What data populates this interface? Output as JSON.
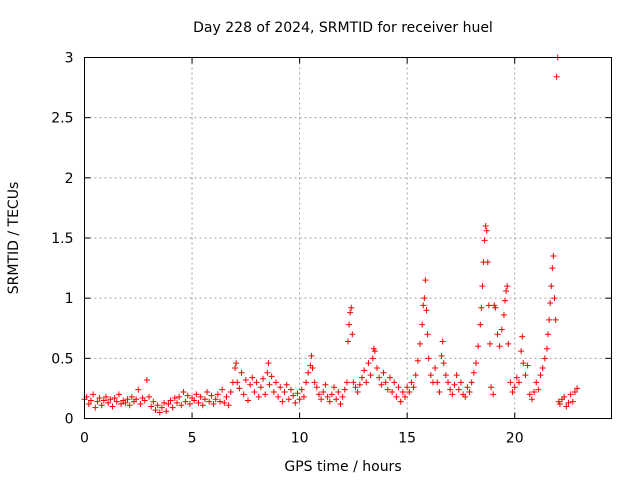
{
  "chart_data": {
    "type": "scatter",
    "title": "Day 228 of 2024, SRMTID for receiver huel",
    "xlabel": "GPS time / hours",
    "ylabel": "SRMTID / TECUs",
    "xlim": [
      0,
      24.5
    ],
    "ylim": [
      0,
      3
    ],
    "xticks": [
      0,
      5,
      10,
      15,
      20
    ],
    "xtick_labels": [
      "0",
      "5",
      "10",
      "15",
      "20"
    ],
    "yticks": [
      0,
      0.5,
      1,
      1.5,
      2,
      2.5,
      3
    ],
    "ytick_labels": [
      "0",
      "0.5",
      "1",
      "1.5",
      "2",
      "2.5",
      "3"
    ],
    "grid": true,
    "marker": "+",
    "color": "#ff0000",
    "series": [
      {
        "name": "SRMTID",
        "points": [
          [
            0.0,
            0.16
          ],
          [
            0.1,
            0.18
          ],
          [
            0.2,
            0.12
          ],
          [
            0.3,
            0.15
          ],
          [
            0.4,
            0.2
          ],
          [
            0.5,
            0.09
          ],
          [
            0.6,
            0.14
          ],
          [
            0.7,
            0.17
          ],
          [
            0.8,
            0.11
          ],
          [
            0.9,
            0.15
          ],
          [
            1.0,
            0.18
          ],
          [
            1.1,
            0.13
          ],
          [
            1.2,
            0.16
          ],
          [
            1.3,
            0.1
          ],
          [
            1.4,
            0.17
          ],
          [
            1.5,
            0.14
          ],
          [
            1.6,
            0.2
          ],
          [
            1.7,
            0.12
          ],
          [
            1.8,
            0.15
          ],
          [
            1.9,
            0.13
          ],
          [
            2.0,
            0.16
          ],
          [
            2.1,
            0.11
          ],
          [
            2.2,
            0.18
          ],
          [
            2.3,
            0.14
          ],
          [
            2.4,
            0.16
          ],
          [
            2.5,
            0.24
          ],
          [
            2.6,
            0.12
          ],
          [
            2.7,
            0.17
          ],
          [
            2.8,
            0.15
          ],
          [
            2.9,
            0.32
          ],
          [
            3.0,
            0.18
          ],
          [
            3.1,
            0.1
          ],
          [
            3.2,
            0.14
          ],
          [
            3.3,
            0.07
          ],
          [
            3.4,
            0.11
          ],
          [
            3.5,
            0.05
          ],
          [
            3.6,
            0.09
          ],
          [
            3.7,
            0.13
          ],
          [
            3.8,
            0.06
          ],
          [
            3.9,
            0.12
          ],
          [
            4.0,
            0.15
          ],
          [
            4.1,
            0.09
          ],
          [
            4.2,
            0.17
          ],
          [
            4.3,
            0.13
          ],
          [
            4.4,
            0.18
          ],
          [
            4.5,
            0.11
          ],
          [
            4.6,
            0.22
          ],
          [
            4.7,
            0.14
          ],
          [
            4.8,
            0.19
          ],
          [
            4.9,
            0.12
          ],
          [
            5.0,
            0.17
          ],
          [
            5.1,
            0.15
          ],
          [
            5.2,
            0.2
          ],
          [
            5.3,
            0.13
          ],
          [
            5.4,
            0.18
          ],
          [
            5.5,
            0.11
          ],
          [
            5.6,
            0.16
          ],
          [
            5.7,
            0.22
          ],
          [
            5.8,
            0.14
          ],
          [
            5.9,
            0.19
          ],
          [
            6.0,
            0.12
          ],
          [
            6.1,
            0.16
          ],
          [
            6.2,
            0.2
          ],
          [
            6.3,
            0.14
          ],
          [
            6.4,
            0.24
          ],
          [
            6.5,
            0.13
          ],
          [
            6.6,
            0.18
          ],
          [
            6.7,
            0.11
          ],
          [
            6.8,
            0.22
          ],
          [
            6.9,
            0.3
          ],
          [
            7.0,
            0.42
          ],
          [
            7.05,
            0.46
          ],
          [
            7.1,
            0.3
          ],
          [
            7.2,
            0.25
          ],
          [
            7.3,
            0.38
          ],
          [
            7.4,
            0.2
          ],
          [
            7.5,
            0.32
          ],
          [
            7.6,
            0.15
          ],
          [
            7.7,
            0.28
          ],
          [
            7.8,
            0.34
          ],
          [
            7.9,
            0.22
          ],
          [
            8.0,
            0.3
          ],
          [
            8.1,
            0.18
          ],
          [
            8.2,
            0.26
          ],
          [
            8.3,
            0.33
          ],
          [
            8.4,
            0.2
          ],
          [
            8.5,
            0.38
          ],
          [
            8.55,
            0.46
          ],
          [
            8.6,
            0.28
          ],
          [
            8.7,
            0.35
          ],
          [
            8.8,
            0.22
          ],
          [
            8.9,
            0.3
          ],
          [
            9.0,
            0.18
          ],
          [
            9.1,
            0.26
          ],
          [
            9.2,
            0.14
          ],
          [
            9.3,
            0.22
          ],
          [
            9.4,
            0.28
          ],
          [
            9.5,
            0.16
          ],
          [
            9.6,
            0.24
          ],
          [
            9.7,
            0.19
          ],
          [
            9.8,
            0.13
          ],
          [
            9.9,
            0.21
          ],
          [
            10.0,
            0.16
          ],
          [
            10.1,
            0.24
          ],
          [
            10.2,
            0.18
          ],
          [
            10.3,
            0.3
          ],
          [
            10.4,
            0.38
          ],
          [
            10.5,
            0.44
          ],
          [
            10.55,
            0.52
          ],
          [
            10.6,
            0.42
          ],
          [
            10.7,
            0.3
          ],
          [
            10.8,
            0.26
          ],
          [
            10.9,
            0.2
          ],
          [
            11.0,
            0.16
          ],
          [
            11.1,
            0.22
          ],
          [
            11.2,
            0.28
          ],
          [
            11.3,
            0.18
          ],
          [
            11.4,
            0.14
          ],
          [
            11.5,
            0.2
          ],
          [
            11.6,
            0.26
          ],
          [
            11.7,
            0.16
          ],
          [
            11.8,
            0.22
          ],
          [
            11.9,
            0.12
          ],
          [
            12.0,
            0.18
          ],
          [
            12.1,
            0.24
          ],
          [
            12.2,
            0.3
          ],
          [
            12.25,
            0.64
          ],
          [
            12.3,
            0.78
          ],
          [
            12.35,
            0.88
          ],
          [
            12.4,
            0.92
          ],
          [
            12.45,
            0.7
          ],
          [
            12.5,
            0.3
          ],
          [
            12.6,
            0.26
          ],
          [
            12.7,
            0.22
          ],
          [
            12.8,
            0.28
          ],
          [
            12.9,
            0.34
          ],
          [
            13.0,
            0.4
          ],
          [
            13.1,
            0.3
          ],
          [
            13.2,
            0.46
          ],
          [
            13.3,
            0.36
          ],
          [
            13.4,
            0.5
          ],
          [
            13.45,
            0.58
          ],
          [
            13.5,
            0.56
          ],
          [
            13.6,
            0.42
          ],
          [
            13.7,
            0.34
          ],
          [
            13.8,
            0.28
          ],
          [
            13.9,
            0.38
          ],
          [
            14.0,
            0.3
          ],
          [
            14.1,
            0.24
          ],
          [
            14.2,
            0.34
          ],
          [
            14.3,
            0.22
          ],
          [
            14.4,
            0.3
          ],
          [
            14.5,
            0.18
          ],
          [
            14.6,
            0.26
          ],
          [
            14.7,
            0.14
          ],
          [
            14.8,
            0.22
          ],
          [
            14.9,
            0.18
          ],
          [
            15.0,
            0.26
          ],
          [
            15.1,
            0.22
          ],
          [
            15.2,
            0.3
          ],
          [
            15.3,
            0.26
          ],
          [
            15.4,
            0.36
          ],
          [
            15.5,
            0.48
          ],
          [
            15.6,
            0.62
          ],
          [
            15.7,
            0.78
          ],
          [
            15.75,
            0.94
          ],
          [
            15.8,
            1.0
          ],
          [
            15.85,
            1.15
          ],
          [
            15.9,
            0.9
          ],
          [
            15.95,
            0.7
          ],
          [
            16.0,
            0.5
          ],
          [
            16.1,
            0.36
          ],
          [
            16.2,
            0.3
          ],
          [
            16.3,
            0.42
          ],
          [
            16.4,
            0.3
          ],
          [
            16.5,
            0.22
          ],
          [
            16.6,
            0.52
          ],
          [
            16.65,
            0.64
          ],
          [
            16.7,
            0.46
          ],
          [
            16.8,
            0.36
          ],
          [
            16.9,
            0.3
          ],
          [
            17.0,
            0.24
          ],
          [
            17.1,
            0.2
          ],
          [
            17.2,
            0.28
          ],
          [
            17.3,
            0.36
          ],
          [
            17.4,
            0.24
          ],
          [
            17.5,
            0.3
          ],
          [
            17.6,
            0.2
          ],
          [
            17.7,
            0.18
          ],
          [
            17.8,
            0.26
          ],
          [
            17.9,
            0.22
          ],
          [
            18.0,
            0.3
          ],
          [
            18.1,
            0.38
          ],
          [
            18.2,
            0.46
          ],
          [
            18.3,
            0.6
          ],
          [
            18.4,
            0.78
          ],
          [
            18.45,
            0.92
          ],
          [
            18.5,
            1.1
          ],
          [
            18.55,
            1.3
          ],
          [
            18.6,
            1.48
          ],
          [
            18.65,
            1.6
          ],
          [
            18.7,
            1.56
          ],
          [
            18.75,
            1.3
          ],
          [
            18.8,
            0.94
          ],
          [
            18.85,
            0.62
          ],
          [
            18.9,
            0.26
          ],
          [
            19.0,
            0.2
          ],
          [
            19.05,
            0.94
          ],
          [
            19.1,
            0.92
          ],
          [
            19.2,
            0.7
          ],
          [
            19.3,
            0.6
          ],
          [
            19.4,
            0.74
          ],
          [
            19.5,
            0.86
          ],
          [
            19.55,
            0.98
          ],
          [
            19.6,
            1.06
          ],
          [
            19.65,
            1.1
          ],
          [
            19.7,
            0.62
          ],
          [
            19.8,
            0.3
          ],
          [
            19.9,
            0.22
          ],
          [
            20.0,
            0.26
          ],
          [
            20.1,
            0.34
          ],
          [
            20.2,
            0.3
          ],
          [
            20.3,
            0.56
          ],
          [
            20.35,
            0.68
          ],
          [
            20.4,
            0.46
          ],
          [
            20.5,
            0.36
          ],
          [
            20.6,
            0.44
          ],
          [
            20.7,
            0.2
          ],
          [
            20.8,
            0.16
          ],
          [
            20.9,
            0.22
          ],
          [
            21.0,
            0.3
          ],
          [
            21.1,
            0.24
          ],
          [
            21.2,
            0.36
          ],
          [
            21.3,
            0.42
          ],
          [
            21.4,
            0.5
          ],
          [
            21.5,
            0.58
          ],
          [
            21.55,
            0.7
          ],
          [
            21.6,
            0.82
          ],
          [
            21.65,
            0.96
          ],
          [
            21.7,
            1.1
          ],
          [
            21.75,
            1.25
          ],
          [
            21.8,
            1.35
          ],
          [
            21.85,
            1.0
          ],
          [
            21.9,
            0.82
          ],
          [
            21.95,
            2.84
          ],
          [
            22.0,
            3.0
          ],
          [
            22.05,
            0.14
          ],
          [
            22.1,
            0.12
          ],
          [
            22.2,
            0.16
          ],
          [
            22.3,
            0.18
          ],
          [
            22.4,
            0.1
          ],
          [
            22.5,
            0.13
          ],
          [
            22.6,
            0.2
          ],
          [
            22.7,
            0.14
          ],
          [
            22.8,
            0.22
          ],
          [
            22.9,
            0.25
          ]
        ]
      }
    ]
  }
}
